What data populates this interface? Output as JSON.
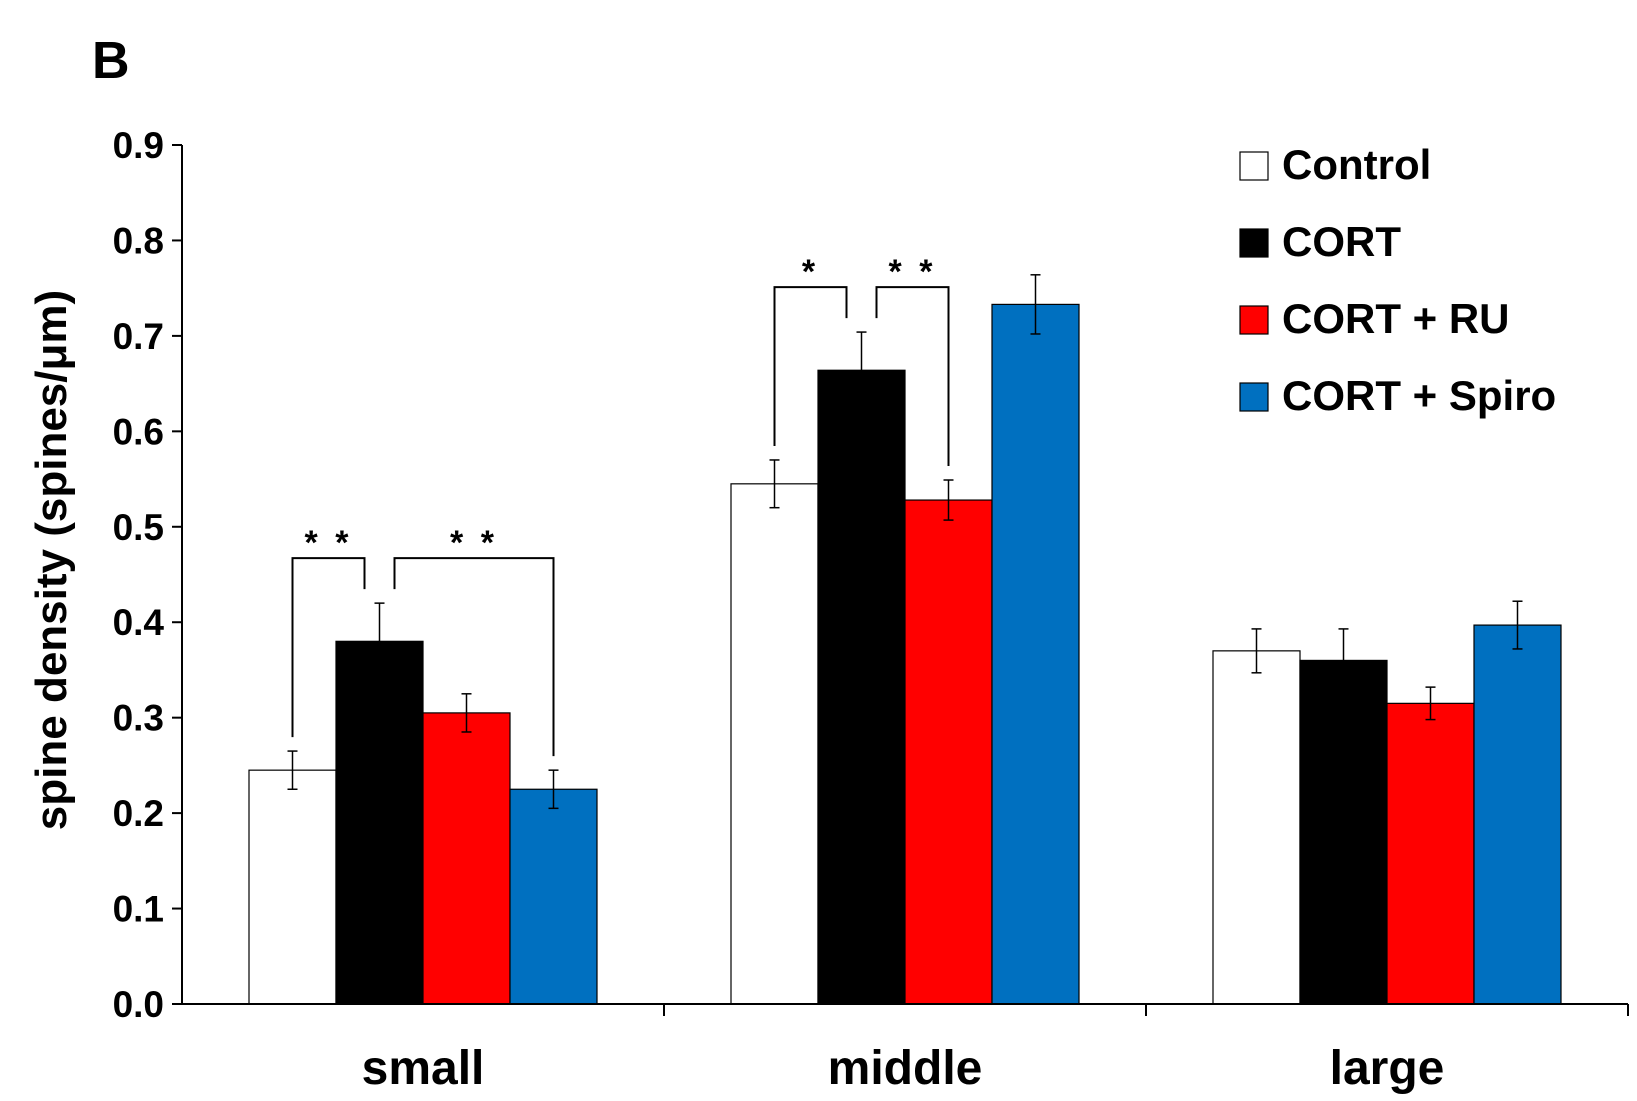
{
  "panel_label": "B",
  "chart_data": {
    "type": "bar",
    "ylabel": "spine density (spines/μm)",
    "xlabel": "",
    "ylim": [
      0,
      0.9
    ],
    "yticks": [
      "0.0",
      "0.1",
      "0.2",
      "0.3",
      "0.4",
      "0.5",
      "0.6",
      "0.7",
      "0.8",
      "0.9"
    ],
    "categories": [
      "small",
      "middle",
      "large"
    ],
    "legend_position": "top-right",
    "series": [
      {
        "name": "Control",
        "color": "#ffffff",
        "values": [
          0.245,
          0.545,
          0.37
        ],
        "errors": [
          0.02,
          0.025,
          0.023
        ]
      },
      {
        "name": "CORT",
        "color": "#000000",
        "values": [
          0.38,
          0.664,
          0.36
        ],
        "errors": [
          0.04,
          0.04,
          0.033
        ]
      },
      {
        "name": "CORT + RU",
        "color": "#ff0000",
        "values": [
          0.305,
          0.528,
          0.315
        ],
        "errors": [
          0.02,
          0.021,
          0.017
        ]
      },
      {
        "name": "CORT + Spiro",
        "color": "#0070c0",
        "values": [
          0.225,
          0.733,
          0.397
        ],
        "errors": [
          0.02,
          0.031,
          0.025
        ]
      }
    ],
    "annotations": [
      {
        "label": "* *",
        "category": 0,
        "from_series": 0,
        "to_series": 1
      },
      {
        "label": "* *",
        "category": 0,
        "from_series": 1,
        "to_series": 3
      },
      {
        "label": "*",
        "category": 1,
        "from_series": 0,
        "to_series": 1
      },
      {
        "label": "* *",
        "category": 1,
        "from_series": 1,
        "to_series": 2
      }
    ]
  }
}
